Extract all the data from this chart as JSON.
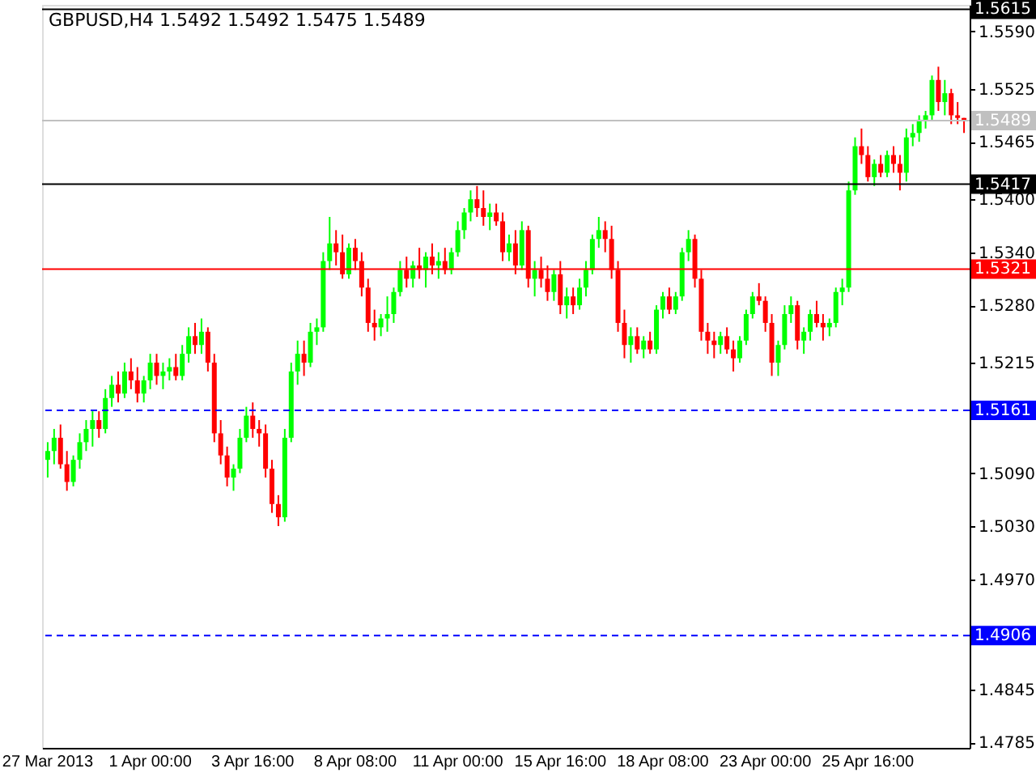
{
  "chart_data": {
    "type": "candlestick",
    "title": "GBPUSD,H4  1.5492 1.5492 1.5475 1.5489",
    "categories": [
      "27 Mar 2013",
      null,
      null,
      null,
      null,
      null,
      null,
      null,
      null,
      null,
      null,
      null,
      null,
      null,
      null,
      null,
      "1 Apr 00:00",
      null,
      null,
      null,
      null,
      null,
      null,
      null,
      null,
      null,
      null,
      null,
      null,
      null,
      null,
      null,
      "3 Apr 16:00",
      null,
      null,
      null,
      null,
      null,
      null,
      null,
      null,
      null,
      null,
      null,
      null,
      null,
      null,
      null,
      "8 Apr 08:00",
      null,
      null,
      null,
      null,
      null,
      null,
      null,
      null,
      null,
      null,
      null,
      null,
      null,
      null,
      null,
      "11 Apr 00:00",
      null,
      null,
      null,
      null,
      null,
      null,
      null,
      null,
      null,
      null,
      null,
      null,
      null,
      null,
      null,
      "15 Apr 16:00",
      null,
      null,
      null,
      null,
      null,
      null,
      null,
      null,
      null,
      null,
      null,
      null,
      null,
      null,
      null,
      "18 Apr 08:00",
      null,
      null,
      null,
      null,
      null,
      null,
      null,
      null,
      null,
      null,
      null,
      null,
      null,
      null,
      null,
      "23 Apr 00:00",
      null,
      null,
      null,
      null,
      null,
      null,
      null,
      null,
      null,
      null,
      null,
      null,
      null,
      null,
      null,
      "25 Apr 16:00",
      null,
      null,
      null,
      null,
      null,
      null,
      null,
      null,
      null,
      null,
      null,
      null,
      null,
      null,
      null
    ],
    "ohlc": [
      [
        1.5105,
        1.5125,
        1.5085,
        1.5115
      ],
      [
        1.5115,
        1.514,
        1.51,
        1.513
      ],
      [
        1.513,
        1.5145,
        1.5095,
        1.51
      ],
      [
        1.51,
        1.5115,
        1.507,
        1.508
      ],
      [
        1.508,
        1.511,
        1.5075,
        1.5105
      ],
      [
        1.5105,
        1.5135,
        1.5095,
        1.5125
      ],
      [
        1.5125,
        1.515,
        1.5115,
        1.514
      ],
      [
        1.514,
        1.516,
        1.512,
        1.515
      ],
      [
        1.515,
        1.516,
        1.513,
        1.514
      ],
      [
        1.514,
        1.5185,
        1.5135,
        1.5175
      ],
      [
        1.5175,
        1.52,
        1.5165,
        1.519
      ],
      [
        1.519,
        1.5205,
        1.517,
        1.518
      ],
      [
        1.518,
        1.5215,
        1.5175,
        1.5205
      ],
      [
        1.5205,
        1.522,
        1.5185,
        1.5195
      ],
      [
        1.5195,
        1.521,
        1.517,
        1.518
      ],
      [
        1.518,
        1.52,
        1.517,
        1.5195
      ],
      [
        1.5195,
        1.5225,
        1.5185,
        1.5215
      ],
      [
        1.5215,
        1.5225,
        1.519,
        1.52
      ],
      [
        1.52,
        1.5215,
        1.5185,
        1.5205
      ],
      [
        1.5205,
        1.522,
        1.5195,
        1.521
      ],
      [
        1.521,
        1.5225,
        1.5195,
        1.52
      ],
      [
        1.52,
        1.5235,
        1.5195,
        1.5225
      ],
      [
        1.5225,
        1.5255,
        1.5215,
        1.5245
      ],
      [
        1.5245,
        1.526,
        1.5225,
        1.5235
      ],
      [
        1.5235,
        1.5265,
        1.5225,
        1.525
      ],
      [
        1.525,
        1.5255,
        1.5205,
        1.5215
      ],
      [
        1.5215,
        1.5225,
        1.5125,
        1.5135
      ],
      [
        1.5135,
        1.515,
        1.51,
        1.511
      ],
      [
        1.511,
        1.512,
        1.5075,
        1.5085
      ],
      [
        1.5085,
        1.51,
        1.507,
        1.5095
      ],
      [
        1.5095,
        1.514,
        1.509,
        1.513
      ],
      [
        1.513,
        1.5165,
        1.5125,
        1.5155
      ],
      [
        1.5155,
        1.517,
        1.513,
        1.514
      ],
      [
        1.514,
        1.515,
        1.512,
        1.5135
      ],
      [
        1.5135,
        1.5145,
        1.5085,
        1.5095
      ],
      [
        1.5095,
        1.5105,
        1.5045,
        1.5055
      ],
      [
        1.5055,
        1.5065,
        1.503,
        1.504
      ],
      [
        1.504,
        1.514,
        1.5035,
        1.513
      ],
      [
        1.513,
        1.5215,
        1.5125,
        1.5205
      ],
      [
        1.5205,
        1.524,
        1.519,
        1.5225
      ],
      [
        1.5225,
        1.524,
        1.52,
        1.5215
      ],
      [
        1.5215,
        1.526,
        1.521,
        1.525
      ],
      [
        1.525,
        1.5265,
        1.5235,
        1.5255
      ],
      [
        1.5255,
        1.534,
        1.525,
        1.533
      ],
      [
        1.533,
        1.538,
        1.532,
        1.535
      ],
      [
        1.535,
        1.5365,
        1.5325,
        1.534
      ],
      [
        1.534,
        1.536,
        1.531,
        1.5315
      ],
      [
        1.5315,
        1.535,
        1.531,
        1.5345
      ],
      [
        1.5345,
        1.5355,
        1.532,
        1.533
      ],
      [
        1.533,
        1.534,
        1.529,
        1.53
      ],
      [
        1.53,
        1.531,
        1.525,
        1.526
      ],
      [
        1.526,
        1.5275,
        1.524,
        1.5255
      ],
      [
        1.5255,
        1.527,
        1.5245,
        1.5265
      ],
      [
        1.5265,
        1.529,
        1.525,
        1.527
      ],
      [
        1.527,
        1.53,
        1.526,
        1.5295
      ],
      [
        1.5295,
        1.533,
        1.529,
        1.532
      ],
      [
        1.532,
        1.5335,
        1.53,
        1.531
      ],
      [
        1.531,
        1.533,
        1.53,
        1.5325
      ],
      [
        1.5325,
        1.5345,
        1.531,
        1.532
      ],
      [
        1.532,
        1.534,
        1.53,
        1.5335
      ],
      [
        1.5335,
        1.535,
        1.5315,
        1.5325
      ],
      [
        1.5325,
        1.534,
        1.531,
        1.533
      ],
      [
        1.533,
        1.5345,
        1.5315,
        1.532
      ],
      [
        1.532,
        1.5345,
        1.5315,
        1.534
      ],
      [
        1.534,
        1.5375,
        1.5335,
        1.5365
      ],
      [
        1.5365,
        1.539,
        1.5355,
        1.5385
      ],
      [
        1.5385,
        1.541,
        1.5375,
        1.54
      ],
      [
        1.54,
        1.5415,
        1.538,
        1.539
      ],
      [
        1.539,
        1.541,
        1.537,
        1.538
      ],
      [
        1.538,
        1.5395,
        1.5365,
        1.5385
      ],
      [
        1.5385,
        1.5395,
        1.537,
        1.5375
      ],
      [
        1.5375,
        1.5385,
        1.533,
        1.534
      ],
      [
        1.534,
        1.536,
        1.533,
        1.535
      ],
      [
        1.535,
        1.5365,
        1.5315,
        1.5325
      ],
      [
        1.5325,
        1.5375,
        1.532,
        1.5365
      ],
      [
        1.5365,
        1.537,
        1.53,
        1.531
      ],
      [
        1.531,
        1.533,
        1.529,
        1.532
      ],
      [
        1.532,
        1.5335,
        1.53,
        1.531
      ],
      [
        1.531,
        1.5325,
        1.5285,
        1.5295
      ],
      [
        1.5295,
        1.532,
        1.5285,
        1.5315
      ],
      [
        1.5315,
        1.533,
        1.527,
        1.528
      ],
      [
        1.528,
        1.53,
        1.5265,
        1.529
      ],
      [
        1.529,
        1.53,
        1.527,
        1.528
      ],
      [
        1.528,
        1.531,
        1.5275,
        1.53
      ],
      [
        1.53,
        1.533,
        1.529,
        1.532
      ],
      [
        1.532,
        1.536,
        1.5315,
        1.5355
      ],
      [
        1.5355,
        1.538,
        1.5345,
        1.5365
      ],
      [
        1.5365,
        1.5375,
        1.534,
        1.5355
      ],
      [
        1.5355,
        1.537,
        1.531,
        1.532
      ],
      [
        1.532,
        1.533,
        1.525,
        1.526
      ],
      [
        1.526,
        1.5275,
        1.522,
        1.5235
      ],
      [
        1.5235,
        1.5255,
        1.5215,
        1.5245
      ],
      [
        1.5245,
        1.5255,
        1.5225,
        1.523
      ],
      [
        1.523,
        1.5245,
        1.522,
        1.524
      ],
      [
        1.524,
        1.525,
        1.5225,
        1.523
      ],
      [
        1.523,
        1.528,
        1.5225,
        1.5275
      ],
      [
        1.5275,
        1.5295,
        1.5265,
        1.529
      ],
      [
        1.529,
        1.53,
        1.527,
        1.5275
      ],
      [
        1.5275,
        1.5295,
        1.527,
        1.529
      ],
      [
        1.529,
        1.5345,
        1.5285,
        1.534
      ],
      [
        1.534,
        1.5365,
        1.533,
        1.5355
      ],
      [
        1.5355,
        1.536,
        1.53,
        1.531
      ],
      [
        1.531,
        1.532,
        1.524,
        1.525
      ],
      [
        1.525,
        1.526,
        1.5225,
        1.524
      ],
      [
        1.524,
        1.525,
        1.522,
        1.5235
      ],
      [
        1.5235,
        1.525,
        1.5225,
        1.5245
      ],
      [
        1.5245,
        1.5255,
        1.5225,
        1.523
      ],
      [
        1.523,
        1.524,
        1.5205,
        1.522
      ],
      [
        1.522,
        1.5245,
        1.5215,
        1.524
      ],
      [
        1.524,
        1.5275,
        1.5235,
        1.527
      ],
      [
        1.527,
        1.5295,
        1.5265,
        1.529
      ],
      [
        1.529,
        1.5305,
        1.528,
        1.5285
      ],
      [
        1.5285,
        1.529,
        1.525,
        1.526
      ],
      [
        1.526,
        1.527,
        1.52,
        1.5215
      ],
      [
        1.5215,
        1.524,
        1.52,
        1.5235
      ],
      [
        1.5235,
        1.528,
        1.523,
        1.527
      ],
      [
        1.527,
        1.529,
        1.526,
        1.528
      ],
      [
        1.528,
        1.5285,
        1.523,
        1.524
      ],
      [
        1.524,
        1.5255,
        1.5225,
        1.525
      ],
      [
        1.525,
        1.5275,
        1.524,
        1.527
      ],
      [
        1.527,
        1.5285,
        1.5255,
        1.526
      ],
      [
        1.526,
        1.527,
        1.524,
        1.5255
      ],
      [
        1.5255,
        1.5265,
        1.5245,
        1.526
      ],
      [
        1.526,
        1.53,
        1.5255,
        1.5295
      ],
      [
        1.5295,
        1.531,
        1.528,
        1.53
      ],
      [
        1.53,
        1.542,
        1.5295,
        1.541
      ],
      [
        1.541,
        1.547,
        1.5405,
        1.546
      ],
      [
        1.546,
        1.548,
        1.544,
        1.545
      ],
      [
        1.545,
        1.546,
        1.542,
        1.5425
      ],
      [
        1.5425,
        1.5445,
        1.5415,
        1.544
      ],
      [
        1.544,
        1.545,
        1.5425,
        1.543
      ],
      [
        1.543,
        1.5455,
        1.5425,
        1.545
      ],
      [
        1.545,
        1.546,
        1.543,
        1.544
      ],
      [
        1.544,
        1.545,
        1.541,
        1.543
      ],
      [
        1.543,
        1.548,
        1.542,
        1.547
      ],
      [
        1.547,
        1.5485,
        1.546,
        1.5475
      ],
      [
        1.5475,
        1.5495,
        1.5465,
        1.549
      ],
      [
        1.549,
        1.55,
        1.548,
        1.5495
      ],
      [
        1.5495,
        1.554,
        1.549,
        1.5535
      ],
      [
        1.5535,
        1.555,
        1.55,
        1.551
      ],
      [
        1.551,
        1.5535,
        1.5495,
        1.552
      ],
      [
        1.552,
        1.5525,
        1.5485,
        1.5495
      ],
      [
        1.5495,
        1.551,
        1.5485,
        1.5492
      ],
      [
        1.5492,
        1.5492,
        1.5475,
        1.5489
      ]
    ],
    "ylim": [
      1.4779,
      1.562
    ],
    "yticks": [
      {
        "value": 1.559,
        "label": "1.5590"
      },
      1.5525,
      1.5465,
      {
        "value": 1.54,
        "label": "1.5400"
      },
      {
        "value": 1.534,
        "label": "1.5340"
      },
      {
        "value": 1.528,
        "label": "1.5280"
      },
      1.5215,
      {
        "value": 1.509,
        "label": "1.5090"
      },
      {
        "value": 1.503,
        "label": "1.5030"
      },
      {
        "value": 1.497,
        "label": "1.4970"
      },
      1.4845,
      1.4785
    ],
    "ref_lines": [
      {
        "axis": "y",
        "value": 1.5615,
        "label": "1.5615",
        "color": "#000000",
        "line_style": "solid"
      },
      {
        "axis": "y",
        "value": 1.5489,
        "label": "1.5489",
        "color": "#c0c0c0",
        "line_style": "solid"
      },
      {
        "axis": "y",
        "value": 1.5417,
        "label": "1.5417",
        "color": "#000000",
        "line_style": "solid"
      },
      {
        "axis": "y",
        "value": 1.5321,
        "label": "1.5321",
        "color": "#ff0000",
        "line_style": "solid"
      },
      {
        "axis": "y",
        "value": 1.5161,
        "label": "1.5161",
        "color": "#0000ff",
        "line_style": "dashed"
      },
      {
        "axis": "y",
        "value": 1.4906,
        "label": "1.4906",
        "color": "#0000ff",
        "line_style": "dashed"
      }
    ],
    "grid": false
  }
}
